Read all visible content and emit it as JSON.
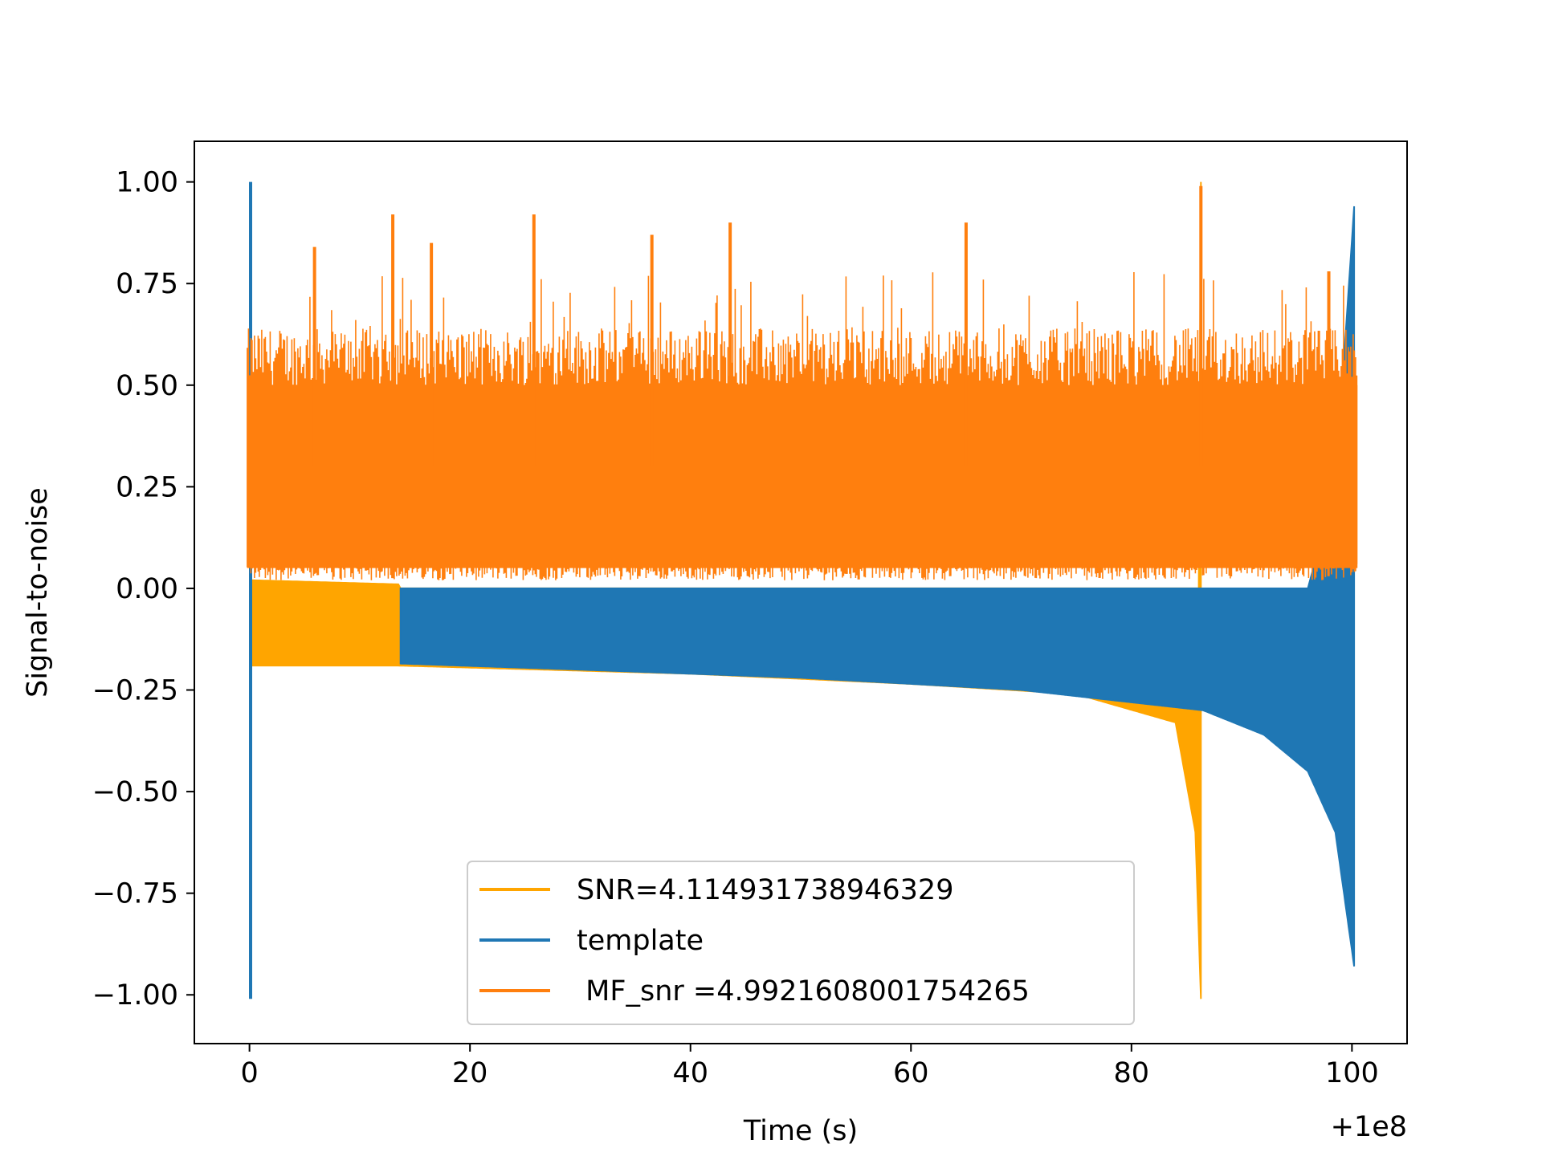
{
  "chart_data": {
    "type": "line",
    "title": "",
    "xlabel": "Time (s)",
    "ylabel": "Signal-to-noise",
    "x_offset_label": "+1e8",
    "xlim": [
      -5,
      105
    ],
    "ylim": [
      -1.12,
      1.1
    ],
    "xticks": [
      0,
      20,
      40,
      60,
      80,
      100
    ],
    "xtick_labels": [
      "0",
      "20",
      "40",
      "60",
      "80",
      "100"
    ],
    "yticks": [
      1.0,
      0.75,
      0.5,
      0.25,
      0.0,
      -0.25,
      -0.5,
      -0.75,
      -1.0
    ],
    "ytick_labels": [
      "1.00",
      "0.75",
      "0.50",
      "0.25",
      "0.00",
      "−0.25",
      "−0.50",
      "−0.75",
      "−1.00"
    ],
    "grid": false,
    "legend_position": "lower-center",
    "series": [
      {
        "name": "SNR=4.114931738946329",
        "color": "#ffa500",
        "x_range": [
          0,
          86.3
        ],
        "peak": {
          "x": 86.3,
          "y": 1.0
        },
        "trough": {
          "x": 86.3,
          "y": -1.01
        },
        "lower_envelope": [
          [
            0.3,
            -0.19
          ],
          [
            13.5,
            -0.19
          ],
          [
            40,
            -0.21
          ],
          [
            60,
            -0.235
          ],
          [
            75,
            -0.26
          ],
          [
            84,
            -0.33
          ],
          [
            85.8,
            -0.6
          ],
          [
            86.3,
            -1.01
          ]
        ],
        "upper_envelope": [
          [
            0.3,
            0.02
          ],
          [
            13.5,
            0.01
          ]
        ]
      },
      {
        "name": "template",
        "color": "#1f77b4",
        "x_range": [
          0,
          100.2
        ],
        "peak": {
          "x": 100.2,
          "y": 0.94
        },
        "trough": {
          "x": 100.2,
          "y": -0.93
        },
        "spike_at_start": {
          "x": 0.1,
          "ymax": 1.0,
          "ymin": -1.01
        },
        "lower_envelope": [
          [
            13.7,
            -0.185
          ],
          [
            30,
            -0.2
          ],
          [
            50,
            -0.22
          ],
          [
            70,
            -0.25
          ],
          [
            86.5,
            -0.3
          ],
          [
            92,
            -0.36
          ],
          [
            96,
            -0.45
          ],
          [
            98.5,
            -0.6
          ],
          [
            100.2,
            -0.93
          ]
        ],
        "upper_envelope": [
          [
            13.7,
            0.0
          ],
          [
            96,
            0.0
          ],
          [
            98.5,
            0.25
          ],
          [
            100.2,
            0.94
          ]
        ]
      },
      {
        "name": " MF_snr =4.9921608001754265",
        "color": "#ff7f0e",
        "x_range": [
          -0.2,
          100.5
        ],
        "band": {
          "ymin_typical": 0.02,
          "ymax_typical": 0.56
        },
        "peak": {
          "x": 86.3,
          "y": 0.99
        },
        "notable_spikes": [
          [
            13,
            0.92
          ],
          [
            25.8,
            0.92
          ],
          [
            36.5,
            0.87
          ],
          [
            43.6,
            0.9
          ],
          [
            65,
            0.9
          ],
          [
            5.9,
            0.84
          ],
          [
            16.5,
            0.85
          ],
          [
            97.9,
            0.78
          ]
        ]
      }
    ]
  }
}
